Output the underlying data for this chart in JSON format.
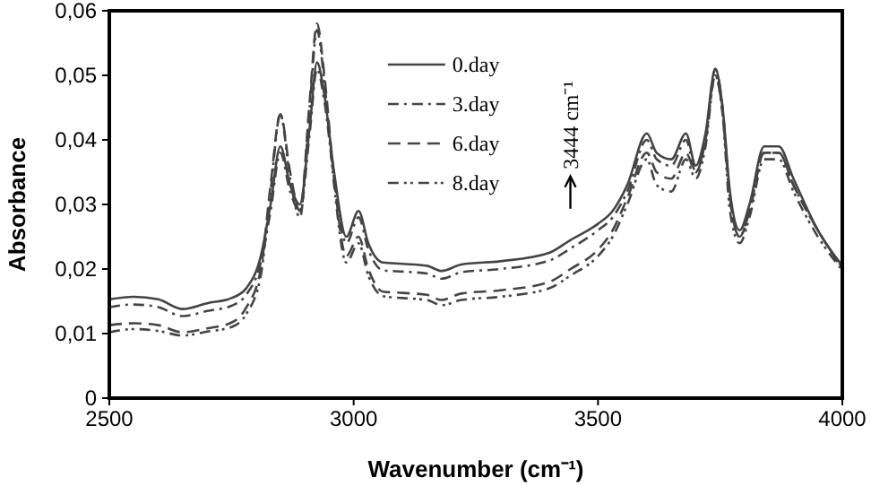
{
  "chart_data": {
    "type": "line",
    "xlabel": "Wavenumber (cm⁻¹)",
    "ylabel": "Absorbance",
    "x": [
      2500,
      2550,
      2600,
      2650,
      2700,
      2750,
      2780,
      2810,
      2830,
      2850,
      2870,
      2890,
      2910,
      2925,
      2940,
      2960,
      2985,
      3010,
      3030,
      3060,
      3100,
      3150,
      3180,
      3220,
      3300,
      3400,
      3444,
      3500,
      3530,
      3560,
      3600,
      3620,
      3650,
      3680,
      3700,
      3720,
      3740,
      3755,
      3770,
      3790,
      3810,
      3840,
      3870,
      3900,
      3950,
      4000
    ],
    "series": [
      {
        "name": "0.day",
        "color": "#444444",
        "line_style": "solid",
        "values": [
          0.0153,
          0.0157,
          0.0153,
          0.0138,
          0.0147,
          0.0155,
          0.017,
          0.022,
          0.03,
          0.039,
          0.033,
          0.03,
          0.042,
          0.052,
          0.047,
          0.035,
          0.025,
          0.029,
          0.024,
          0.021,
          0.0208,
          0.0205,
          0.0197,
          0.0207,
          0.0212,
          0.0225,
          0.0245,
          0.027,
          0.029,
          0.033,
          0.041,
          0.038,
          0.037,
          0.041,
          0.036,
          0.041,
          0.051,
          0.045,
          0.032,
          0.026,
          0.03,
          0.039,
          0.039,
          0.034,
          0.026,
          0.0205
        ]
      },
      {
        "name": "3.day",
        "color": "#444444",
        "line_style": "dashdot",
        "values": [
          0.0141,
          0.0145,
          0.0141,
          0.0127,
          0.0135,
          0.0143,
          0.016,
          0.021,
          0.029,
          0.038,
          0.032,
          0.029,
          0.041,
          0.051,
          0.046,
          0.034,
          0.024,
          0.028,
          0.023,
          0.0198,
          0.0196,
          0.0193,
          0.0185,
          0.0195,
          0.02,
          0.0213,
          0.0232,
          0.026,
          0.028,
          0.032,
          0.04,
          0.037,
          0.036,
          0.04,
          0.035,
          0.04,
          0.05,
          0.044,
          0.031,
          0.025,
          0.029,
          0.038,
          0.038,
          0.033,
          0.026,
          0.0202
        ]
      },
      {
        "name": "6.day",
        "color": "#444444",
        "line_style": "dashed",
        "values": [
          0.0113,
          0.0116,
          0.0113,
          0.0102,
          0.0108,
          0.0117,
          0.014,
          0.02,
          0.033,
          0.044,
          0.035,
          0.029,
          0.046,
          0.058,
          0.05,
          0.034,
          0.022,
          0.025,
          0.02,
          0.0165,
          0.0163,
          0.016,
          0.0152,
          0.0162,
          0.0167,
          0.018,
          0.02,
          0.023,
          0.026,
          0.031,
          0.038,
          0.035,
          0.034,
          0.038,
          0.035,
          0.04,
          0.051,
          0.045,
          0.031,
          0.025,
          0.029,
          0.038,
          0.038,
          0.033,
          0.026,
          0.02
        ]
      },
      {
        "name": "8.day",
        "color": "#444444",
        "line_style": "dashdotdot",
        "values": [
          0.0102,
          0.0107,
          0.0104,
          0.0097,
          0.0103,
          0.011,
          0.013,
          0.019,
          0.032,
          0.044,
          0.034,
          0.028,
          0.045,
          0.057,
          0.049,
          0.033,
          0.021,
          0.024,
          0.019,
          0.0158,
          0.0155,
          0.0152,
          0.0144,
          0.0152,
          0.0157,
          0.017,
          0.019,
          0.022,
          0.025,
          0.03,
          0.037,
          0.033,
          0.032,
          0.037,
          0.034,
          0.039,
          0.05,
          0.044,
          0.029,
          0.024,
          0.028,
          0.037,
          0.037,
          0.032,
          0.025,
          0.0198
        ]
      }
    ],
    "xlim": [
      2500,
      4000
    ],
    "xticks": [
      2500,
      3000,
      3500,
      4000
    ],
    "ylim": [
      0,
      0.06
    ],
    "yticks": [
      {
        "value": 0,
        "label": "0"
      },
      {
        "value": 0.01,
        "label": "0,01"
      },
      {
        "value": 0.02,
        "label": "0,02"
      },
      {
        "value": 0.03,
        "label": "0,03"
      },
      {
        "value": 0.04,
        "label": "0,04"
      },
      {
        "value": 0.05,
        "label": "0,05"
      },
      {
        "value": 0.06,
        "label": "0,06"
      }
    ],
    "grid": false,
    "legend": "top",
    "marker": "none",
    "annotations": [
      "3444 cm⁻¹"
    ]
  }
}
